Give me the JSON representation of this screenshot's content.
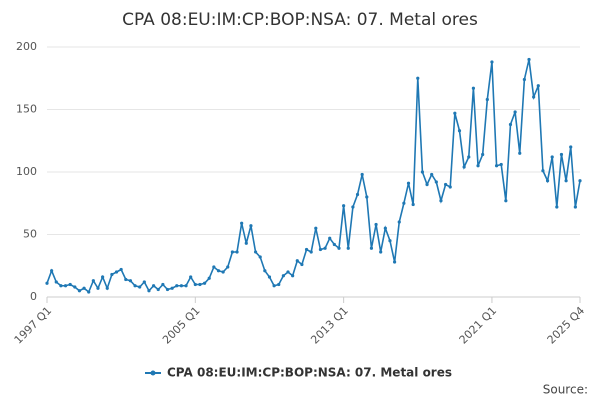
{
  "chart_data": {
    "type": "line",
    "title": "CPA 08:EU:IM:CP:BOP:NSA: 07. Metal ores",
    "categories": [
      "1997 Q1",
      null,
      null,
      null,
      null,
      null,
      null,
      null,
      null,
      null,
      null,
      null,
      null,
      null,
      null,
      null,
      null,
      null,
      null,
      null,
      null,
      null,
      null,
      null,
      null,
      null,
      null,
      null,
      null,
      null,
      null,
      null,
      "2005 Q1",
      null,
      null,
      null,
      null,
      null,
      null,
      null,
      null,
      null,
      null,
      null,
      null,
      null,
      null,
      null,
      null,
      null,
      null,
      null,
      null,
      null,
      null,
      null,
      null,
      null,
      null,
      null,
      null,
      null,
      null,
      null,
      "2013 Q1",
      null,
      null,
      null,
      null,
      null,
      null,
      null,
      null,
      null,
      null,
      null,
      null,
      null,
      null,
      null,
      null,
      null,
      null,
      null,
      null,
      null,
      null,
      null,
      null,
      null,
      null,
      null,
      null,
      null,
      null,
      null,
      "2021 Q1",
      null,
      null,
      null,
      null,
      null,
      null,
      null,
      null,
      null,
      null,
      null,
      null,
      null,
      null,
      null,
      null,
      null,
      null,
      "2025 Q4"
    ],
    "series": [
      {
        "name": "CPA 08:EU:IM:CP:BOP:NSA: 07. Metal ores",
        "color": "#1f78b4",
        "values": [
          11,
          21,
          12,
          9,
          9,
          10,
          8,
          5,
          7,
          4,
          13,
          7,
          16,
          7,
          18,
          20,
          22,
          14,
          13,
          9,
          8,
          12,
          5,
          9,
          6,
          10,
          6,
          7,
          9,
          9,
          9,
          16,
          10,
          10,
          11,
          15,
          24,
          21,
          20,
          24,
          36,
          36,
          59,
          43,
          57,
          36,
          32,
          21,
          16,
          9,
          10,
          17,
          20,
          17,
          29,
          26,
          38,
          36,
          55,
          38,
          39,
          47,
          42,
          39,
          73,
          39,
          72,
          82,
          98,
          80,
          39,
          58,
          36,
          55,
          45,
          28,
          60,
          75,
          91,
          74,
          175,
          100,
          90,
          98,
          92,
          77,
          90,
          88,
          147,
          133,
          104,
          112,
          167,
          105,
          114,
          158,
          188,
          105,
          106,
          77,
          138,
          148,
          115,
          174,
          190,
          160,
          169,
          101,
          93,
          112,
          72,
          114,
          93,
          120,
          72,
          93
        ]
      }
    ],
    "ylim": [
      0,
      200
    ],
    "yticks": [
      0,
      50,
      100,
      150,
      200
    ],
    "grid": true,
    "legend": "bottom",
    "source": "Source:"
  }
}
